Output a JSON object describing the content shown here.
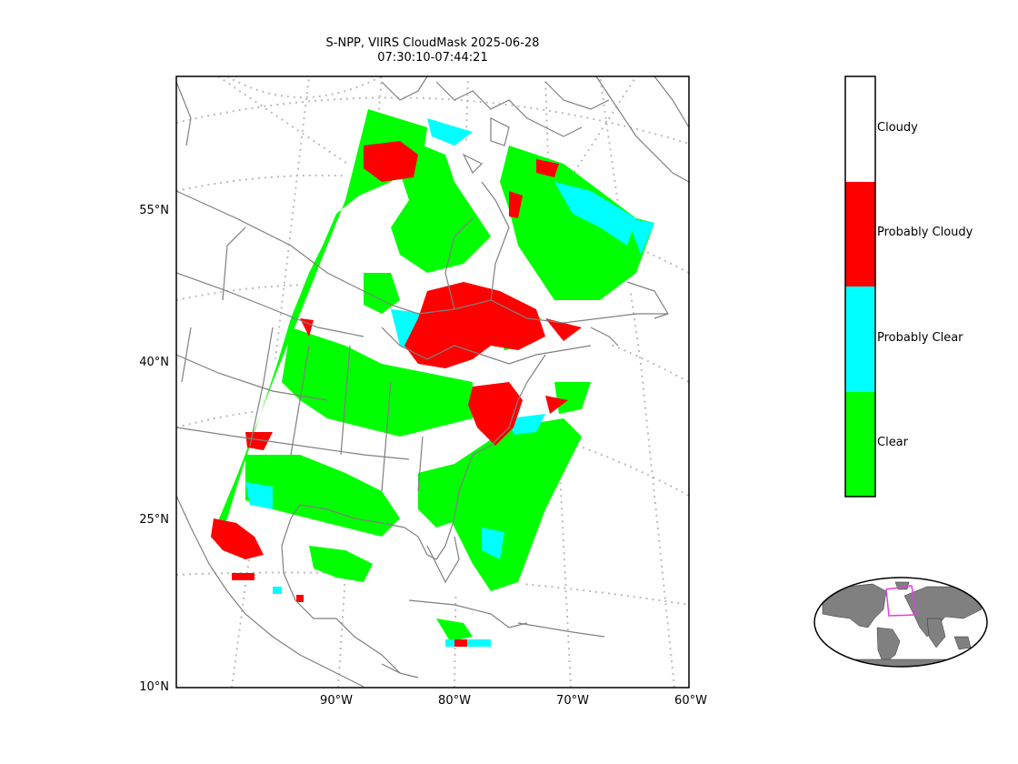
{
  "title": {
    "line1": "S-NPP, VIIRS CloudMask 2025-06-28",
    "line2": "07:30:10-07:44:21"
  },
  "lat_labels": [
    "55°N",
    "40°N",
    "25°N",
    "10°N"
  ],
  "lon_labels": [
    "90°W",
    "80°W",
    "70°W",
    "60°W"
  ],
  "legend": {
    "categories": [
      {
        "label": "Cloudy",
        "color": "#ffffff"
      },
      {
        "label": "Probably Cloudy",
        "color": "#ff0000"
      },
      {
        "label": "Probably Clear",
        "color": "#00ffff"
      },
      {
        "label": "Clear",
        "color": "#00ff00"
      }
    ]
  },
  "colors": {
    "coastline": "#808080",
    "graticule": "#bbbbbb",
    "inset_land": "#808080",
    "inset_box": "#e040e0"
  }
}
